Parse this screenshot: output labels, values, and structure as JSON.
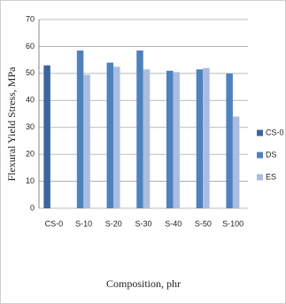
{
  "chart_data": {
    "type": "bar",
    "x_label": "Composition, phr",
    "y_label": "Flexural Yield Stress, MPa",
    "categories": [
      "CS-0",
      "S-10",
      "S-20",
      "S-30",
      "S-40",
      "S-50",
      "S-100"
    ],
    "series": [
      {
        "name": "CS-0",
        "color": "#3c64a0",
        "values": [
          53,
          null,
          null,
          null,
          null,
          null,
          null
        ]
      },
      {
        "name": "DS",
        "color": "#4f81bd",
        "values": [
          null,
          58.5,
          54,
          58.5,
          51,
          51.5,
          50
        ]
      },
      {
        "name": "ES",
        "color": "#a9bde0",
        "values": [
          null,
          49.5,
          52.5,
          51.5,
          50.5,
          52,
          34
        ]
      }
    ],
    "ylim": [
      0,
      70
    ],
    "yticks": [
      0,
      10,
      20,
      30,
      40,
      50,
      60,
      70
    ],
    "grid": true,
    "legend": "right"
  }
}
